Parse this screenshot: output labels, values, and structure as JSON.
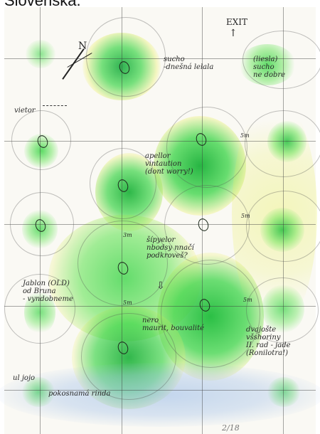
{
  "caption": "Slovenska.",
  "plan": {
    "compass_label": "N",
    "exit_label": "EXIT",
    "exit_arrow": "↑",
    "wind_label": "vietor",
    "notes": {
      "top_center": "sucho\n-dnešná lelala",
      "top_right": "(liesla)\nsucho\nne dobre",
      "middle_1": "apellor\nvintaution\n(dont worry!)",
      "middle_2": "šípyelor\nnbodsy nnačí\npodkroveš?",
      "left": "Jablon (OLD)\nod Bruna\n- vyndobneme",
      "center_lower": "nero\nmaurit, bouvalité",
      "right": "dvajošte\nvšshoriny\nII. rad - jade\n(Ronilotra!)",
      "bottom_left_1": "ul jojo",
      "bottom_left_2": "pokosnamá rinda",
      "page_number": "2/18"
    },
    "distances": {
      "d1": "5m",
      "d2": "5m",
      "d3": "5m",
      "d4": "3m",
      "d5": "5m"
    },
    "colors": {
      "paper": "#faf9f4",
      "green": "#2fd23c",
      "yellow": "#e8ef5e",
      "blue": "#9bbce8",
      "pencil": "#2a2a2a"
    }
  }
}
